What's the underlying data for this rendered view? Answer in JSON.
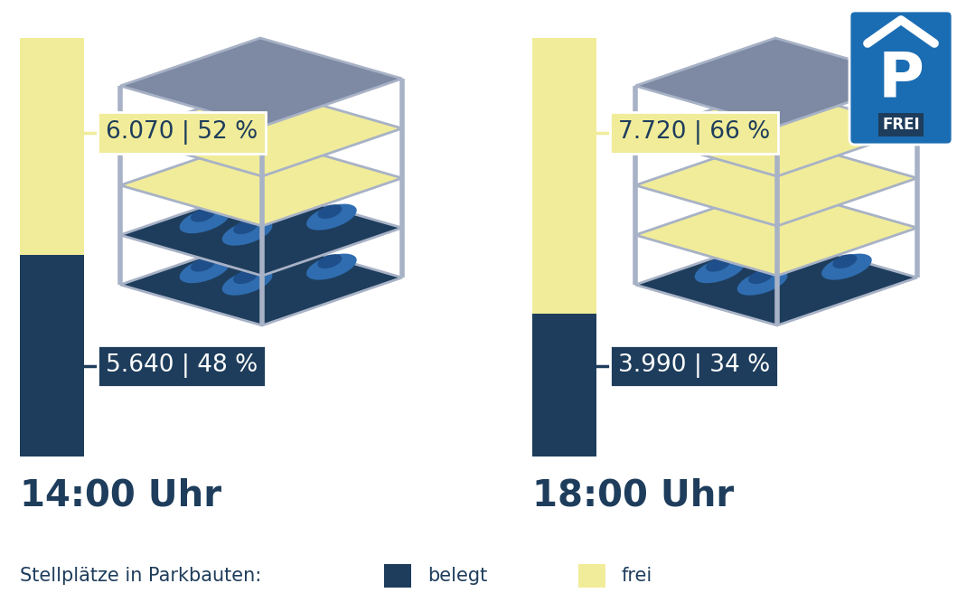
{
  "chart_data": {
    "type": "bar",
    "stacked": true,
    "tick_labels": false,
    "categories": [
      "14:00 Uhr",
      "18:00 Uhr"
    ],
    "ylim": [
      0,
      11710
    ],
    "series": [
      {
        "name": "belegt",
        "color": "#1e3d5c",
        "values": [
          5640,
          3990
        ],
        "value_labels": [
          "5.640 | 48 %",
          "3.990 | 34 %"
        ]
      },
      {
        "name": "frei",
        "color": "#f1ec99",
        "values": [
          6070,
          7720
        ],
        "value_labels": [
          "6.070 | 52 %",
          "7.720 | 66 %"
        ]
      }
    ],
    "data_labels": true,
    "legend_title": "Stellplätze in Parkbauten:",
    "annotations": [
      "P",
      "FREI"
    ]
  }
}
